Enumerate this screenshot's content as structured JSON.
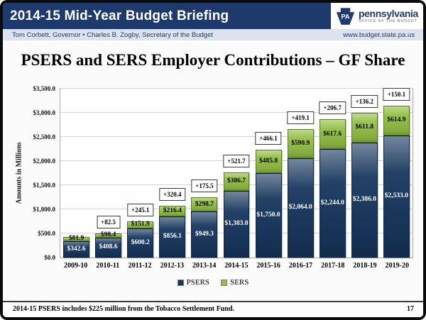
{
  "header": {
    "title": "2014-15 Mid-Year Budget Briefing",
    "governor_line": "Tom Corbett, Governor   •   Charles B. Zogby, Secretary of the Budget",
    "website": "www.budget.state.pa.us",
    "logo": {
      "keystone_text": "PA",
      "brand": "pennsylvania",
      "tagline": "OFFICE OF THE BUDGET"
    }
  },
  "slide": {
    "title": "PSERS and SERS Employer Contributions – GF Share"
  },
  "chart_data": {
    "type": "bar",
    "stacked": true,
    "title": "PSERS and SERS Employer Contributions – GF Share",
    "xlabel": "",
    "ylabel": "Amounts in Millions",
    "ylim": [
      0,
      3500
    ],
    "ytick_step": 500,
    "grid": true,
    "legend_position": "bottom",
    "categories": [
      "2009-10",
      "2010-11",
      "2011-12",
      "2012-13",
      "2013-14",
      "2014-15",
      "2015-16",
      "2016-17",
      "2017-18",
      "2018-19",
      "2019-20"
    ],
    "series": [
      {
        "name": "PSERS",
        "color": "#17375E",
        "border": "#0D2443",
        "label_color": "#FFFFFF",
        "values": [
          342.6,
          408.6,
          600.2,
          856.1,
          949.3,
          1383.0,
          1750.0,
          2064.0,
          2244.0,
          2386.0,
          2533.0
        ]
      },
      {
        "name": "SERS",
        "color": "#94C045",
        "border": "#55791F",
        "label_color": "#000000",
        "values": [
          81.9,
          98.4,
          151.9,
          216.4,
          298.7,
          386.7,
          485.8,
          590.9,
          617.6,
          611.8,
          614.9
        ]
      }
    ],
    "annotations": [
      null,
      "+82.5",
      "+245.1",
      "+320.4",
      "+175.5",
      "+521.7",
      "+466.1",
      "+419.1",
      "+206.7",
      "+136.2",
      "+150.1"
    ]
  },
  "footer": {
    "note": "2014-15 PSERS includes $225 million from the Tobacco Settlement Fund.",
    "page_number": "17"
  }
}
